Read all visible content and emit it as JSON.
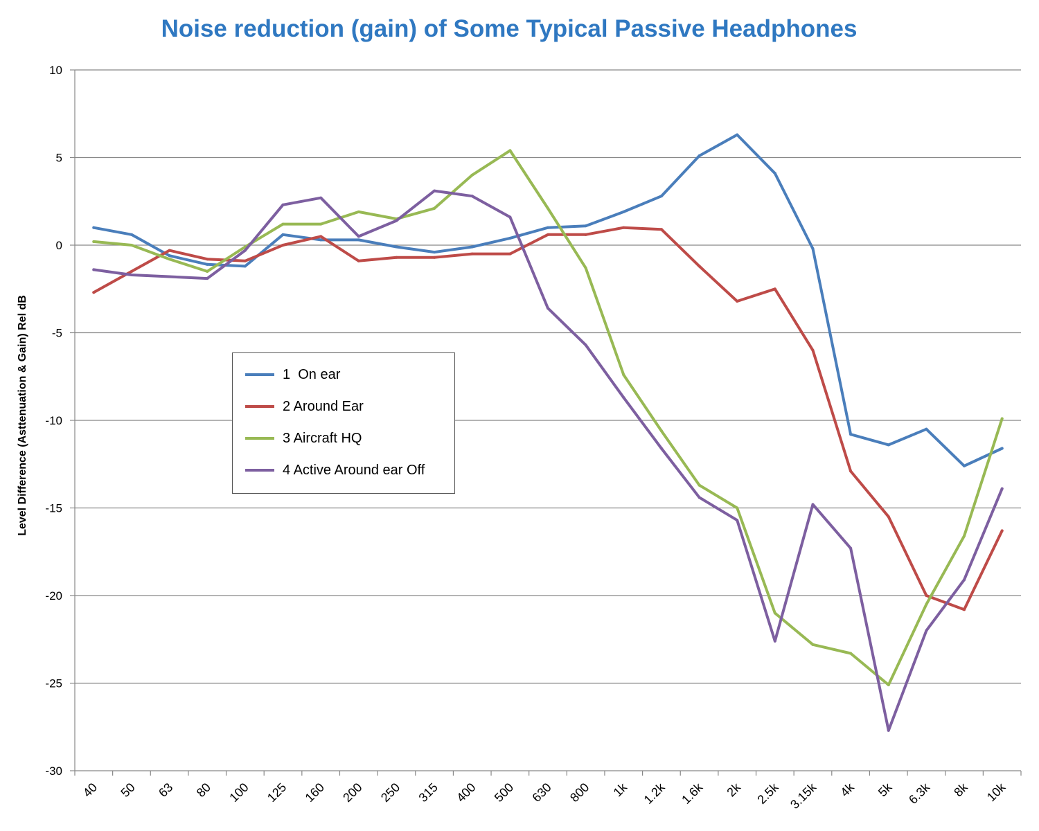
{
  "chart_data": {
    "type": "line",
    "title": "Noise reduction (gain) of Some Typical Passive Headphones",
    "ylabel": "Level Difference (Asttenuation  & Gain)  Rel dB",
    "xlabel": "",
    "ylim": [
      -30,
      10
    ],
    "yticks": [
      10,
      5,
      0,
      -5,
      -10,
      -15,
      -20,
      -25,
      -30
    ],
    "grid": true,
    "legend_position": "left-center",
    "categories": [
      "40",
      "50",
      "63",
      "80",
      "100",
      "125",
      "160",
      "200",
      "250",
      "315",
      "400",
      "500",
      "630",
      "800",
      "1k",
      "1.2k",
      "1.6k",
      "2k",
      "2.5k",
      "3.15k",
      "4k",
      "5k",
      "6.3k",
      "8k",
      "10k"
    ],
    "series": [
      {
        "name": "1  On ear",
        "color": "#4A7EBB",
        "values": [
          1.0,
          0.6,
          -0.6,
          -1.1,
          -1.2,
          0.6,
          0.3,
          0.3,
          -0.1,
          -0.4,
          -0.1,
          0.4,
          1.0,
          1.1,
          1.9,
          2.8,
          5.1,
          6.3,
          4.1,
          -0.2,
          -10.8,
          -11.4,
          -10.5,
          -12.6,
          -11.6
        ]
      },
      {
        "name": "2 Around Ear",
        "color": "#BE4B48",
        "values": [
          -2.7,
          -1.5,
          -0.3,
          -0.8,
          -0.9,
          0.0,
          0.5,
          -0.9,
          -0.7,
          -0.7,
          -0.5,
          -0.5,
          0.6,
          0.6,
          1.0,
          0.9,
          -1.2,
          -3.2,
          -2.5,
          -6.0,
          -12.9,
          -15.5,
          -20.0,
          -20.8,
          -16.3
        ]
      },
      {
        "name": "3 Aircraft HQ",
        "color": "#98B954",
        "values": [
          0.2,
          0.0,
          -0.8,
          -1.5,
          -0.1,
          1.2,
          1.2,
          1.9,
          1.5,
          2.1,
          4.0,
          5.4,
          2.1,
          -1.3,
          -7.4,
          -10.6,
          -13.7,
          -15.0,
          -21.0,
          -22.8,
          -23.3,
          -25.1,
          -20.5,
          -16.6,
          -9.9
        ]
      },
      {
        "name": "4 Active Around ear Off",
        "color": "#7D5FA0",
        "values": [
          -1.4,
          -1.7,
          -1.8,
          -1.9,
          -0.3,
          2.3,
          2.7,
          0.5,
          1.4,
          3.1,
          2.8,
          1.6,
          -3.6,
          -5.7,
          -8.7,
          -11.6,
          -14.4,
          -15.7,
          -22.6,
          -14.8,
          -17.3,
          -27.7,
          -22.0,
          -19.1,
          -13.9
        ]
      }
    ]
  }
}
